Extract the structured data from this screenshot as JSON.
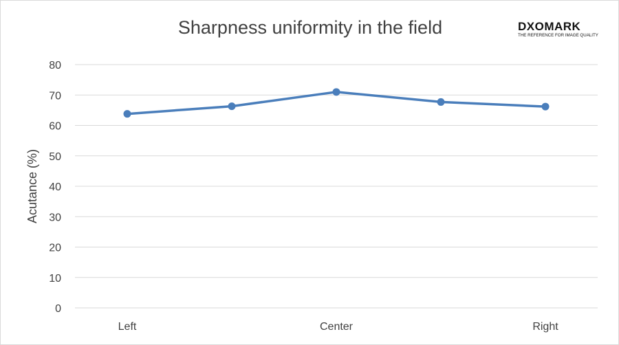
{
  "logo": {
    "wordmark": "DXOMARK",
    "tagline": "THE REFERENCE FOR IMAGE QUALITY"
  },
  "chart_data": {
    "type": "line",
    "title": "Sharpness uniformity in the field",
    "xlabel": "",
    "ylabel": "Acutance (%)",
    "ylim": [
      0,
      80
    ],
    "yticks": [
      0,
      10,
      20,
      30,
      40,
      50,
      60,
      70,
      80
    ],
    "x": [
      "",
      "",
      "",
      "",
      ""
    ],
    "x_tick_labels": [
      {
        "index": 0,
        "label": "Left"
      },
      {
        "index": 2,
        "label": "Center"
      },
      {
        "index": 4,
        "label": "Right"
      }
    ],
    "grid": true,
    "legend": "none",
    "series": [
      {
        "values": [
          63.8,
          66.3,
          71.0,
          67.7,
          66.2
        ],
        "color": "#4a7ebb"
      }
    ],
    "gridline_color": "#d9d9d9",
    "text_color": "#404040"
  }
}
